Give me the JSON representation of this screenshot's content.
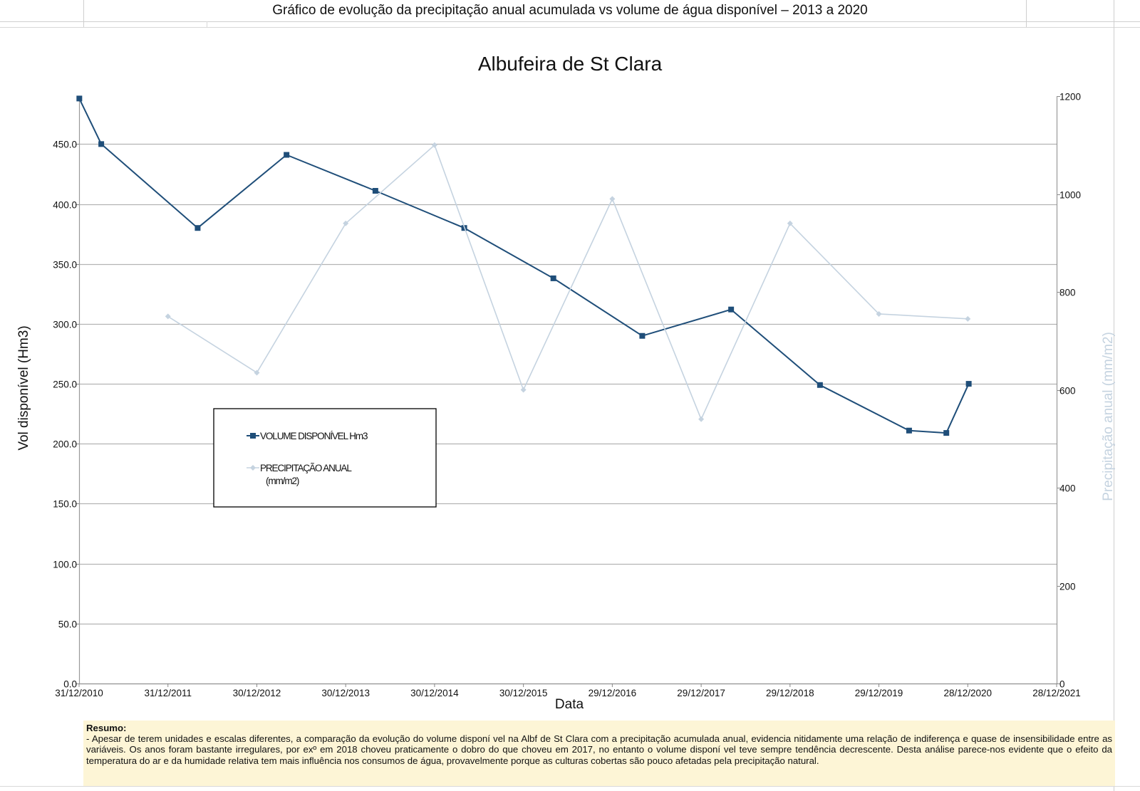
{
  "page": {
    "title": "Gráfico de evolução da precipitação anual acumulada vs volume de água disponível – 2013 a 2020"
  },
  "summary": {
    "heading": "Resumo:",
    "text": "- Apesar de terem unidades e escalas diferentes, a comparação da evolução do volume disponí vel na Albf de St Clara com a precipitação acumulada anual, evidencia nitidamente uma relação de indiferença e quase de insensibilidade entre as variáveis. Os anos foram bastante irregulares, por exº em 2018 choveu praticamente o dobro do que choveu em 2017, no entanto o volume disponí vel teve sempre tendência decrescente. Desta análise parece-nos evidente que o efeito da temperatura do ar e da humidade relativa tem mais influência nos consumos de água, provavelmente porque as culturas cobertas são pouco afetadas pela precipitação natural."
  },
  "colors": {
    "volume": "#1f4e79",
    "precip": "#c5d3e0",
    "grid": "#b3b3b3",
    "right_axis_label": "#c5d3e0",
    "summary_bg": "#fdf5d6"
  },
  "chart_data": {
    "type": "line",
    "title": "Albufeira de St Clara",
    "xlabel": "Data",
    "ylabel": "Vol disponível (Hm3)",
    "ylabel_right": "Precipitação anual (mm/m2)",
    "xlim": [
      "2010-12-31",
      "2021-12-28"
    ],
    "x_ticks": [
      "31/12/2010",
      "31/12/2011",
      "30/12/2012",
      "30/12/2013",
      "30/12/2014",
      "30/12/2015",
      "29/12/2016",
      "29/12/2017",
      "29/12/2018",
      "29/12/2019",
      "28/12/2020",
      "28/12/2021"
    ],
    "ylim": [
      0,
      490
    ],
    "y_ticks": [
      "0.0",
      "50.0",
      "100.0",
      "150.0",
      "200.0",
      "250.0",
      "300.0",
      "350.0",
      "400.0",
      "450.0"
    ],
    "ylim_right": [
      0,
      1200
    ],
    "y_ticks_right": [
      "0",
      "200",
      "400",
      "600",
      "800",
      "1000",
      "1200"
    ],
    "grid": true,
    "legend_position": "left-middle",
    "series": [
      {
        "name": "VOLUME DISPONÍVEL Hm3",
        "axis": "left",
        "marker": "square",
        "points": [
          {
            "x": "2011-01-01",
            "y": 488
          },
          {
            "x": "2011-04-01",
            "y": 450
          },
          {
            "x": "2012-05-01",
            "y": 380
          },
          {
            "x": "2013-05-01",
            "y": 441
          },
          {
            "x": "2014-05-01",
            "y": 411
          },
          {
            "x": "2015-05-01",
            "y": 380
          },
          {
            "x": "2016-05-01",
            "y": 338
          },
          {
            "x": "2017-05-01",
            "y": 290
          },
          {
            "x": "2018-05-01",
            "y": 312
          },
          {
            "x": "2019-05-01",
            "y": 249
          },
          {
            "x": "2020-05-01",
            "y": 211
          },
          {
            "x": "2020-10-01",
            "y": 209
          },
          {
            "x": "2021-01-01",
            "y": 250
          }
        ]
      },
      {
        "name": "PRECIPITAÇÃO ANUAL (mm/m2)",
        "axis": "right",
        "marker": "diamond",
        "points": [
          {
            "x": "2011-12-31",
            "y": 750
          },
          {
            "x": "2012-12-30",
            "y": 635
          },
          {
            "x": "2013-12-30",
            "y": 940
          },
          {
            "x": "2014-12-30",
            "y": 1100
          },
          {
            "x": "2015-12-30",
            "y": 600
          },
          {
            "x": "2016-12-29",
            "y": 990
          },
          {
            "x": "2017-12-29",
            "y": 540
          },
          {
            "x": "2018-12-29",
            "y": 940
          },
          {
            "x": "2019-12-29",
            "y": 755
          },
          {
            "x": "2020-12-28",
            "y": 745
          }
        ]
      }
    ]
  }
}
